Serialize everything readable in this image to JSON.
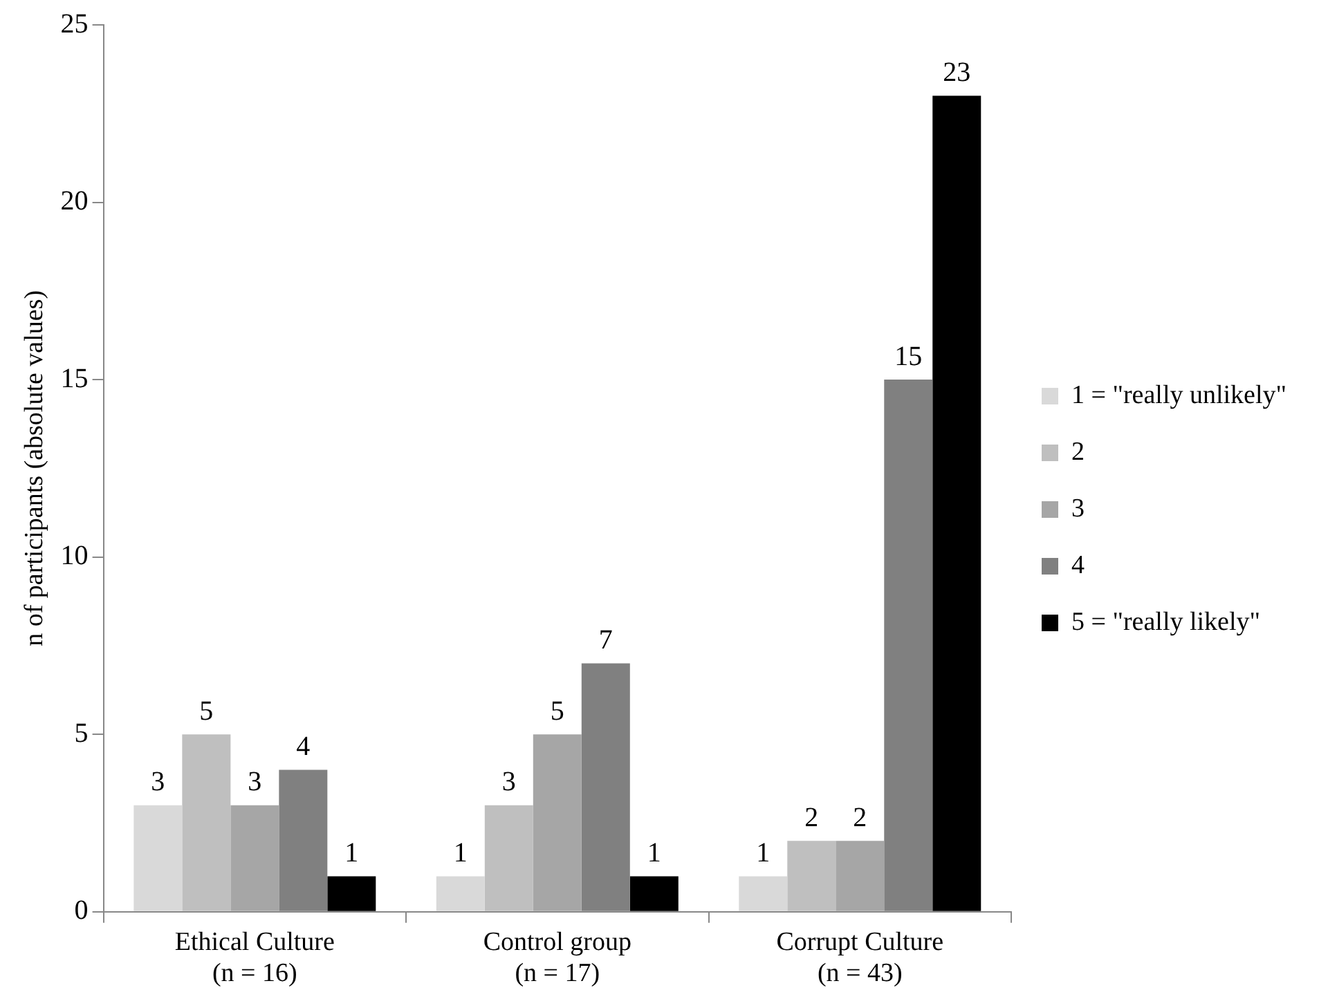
{
  "chart_data": {
    "type": "bar",
    "ylabel": "n of participants (absolute values)",
    "categories": [
      "Ethical Culture\n(n = 16)",
      "Control group\n(n = 17)",
      "Corrupt Culture\n(n = 43)"
    ],
    "series": [
      {
        "name": "1 = \"really unlikely\"",
        "color": "#d9d9d9",
        "values": [
          3,
          1,
          1
        ]
      },
      {
        "name": "2",
        "color": "#bfbfbf",
        "values": [
          5,
          3,
          2
        ]
      },
      {
        "name": "3",
        "color": "#a6a6a6",
        "values": [
          3,
          5,
          2
        ]
      },
      {
        "name": "4",
        "color": "#808080",
        "values": [
          4,
          7,
          15
        ]
      },
      {
        "name": "5 = \"really likely\"",
        "color": "#000000",
        "values": [
          1,
          1,
          23
        ]
      }
    ],
    "ylim": [
      0,
      25
    ],
    "yticks": [
      0,
      5,
      10,
      15,
      20,
      25
    ],
    "grid": false,
    "legend": "right",
    "data_labels": true
  }
}
